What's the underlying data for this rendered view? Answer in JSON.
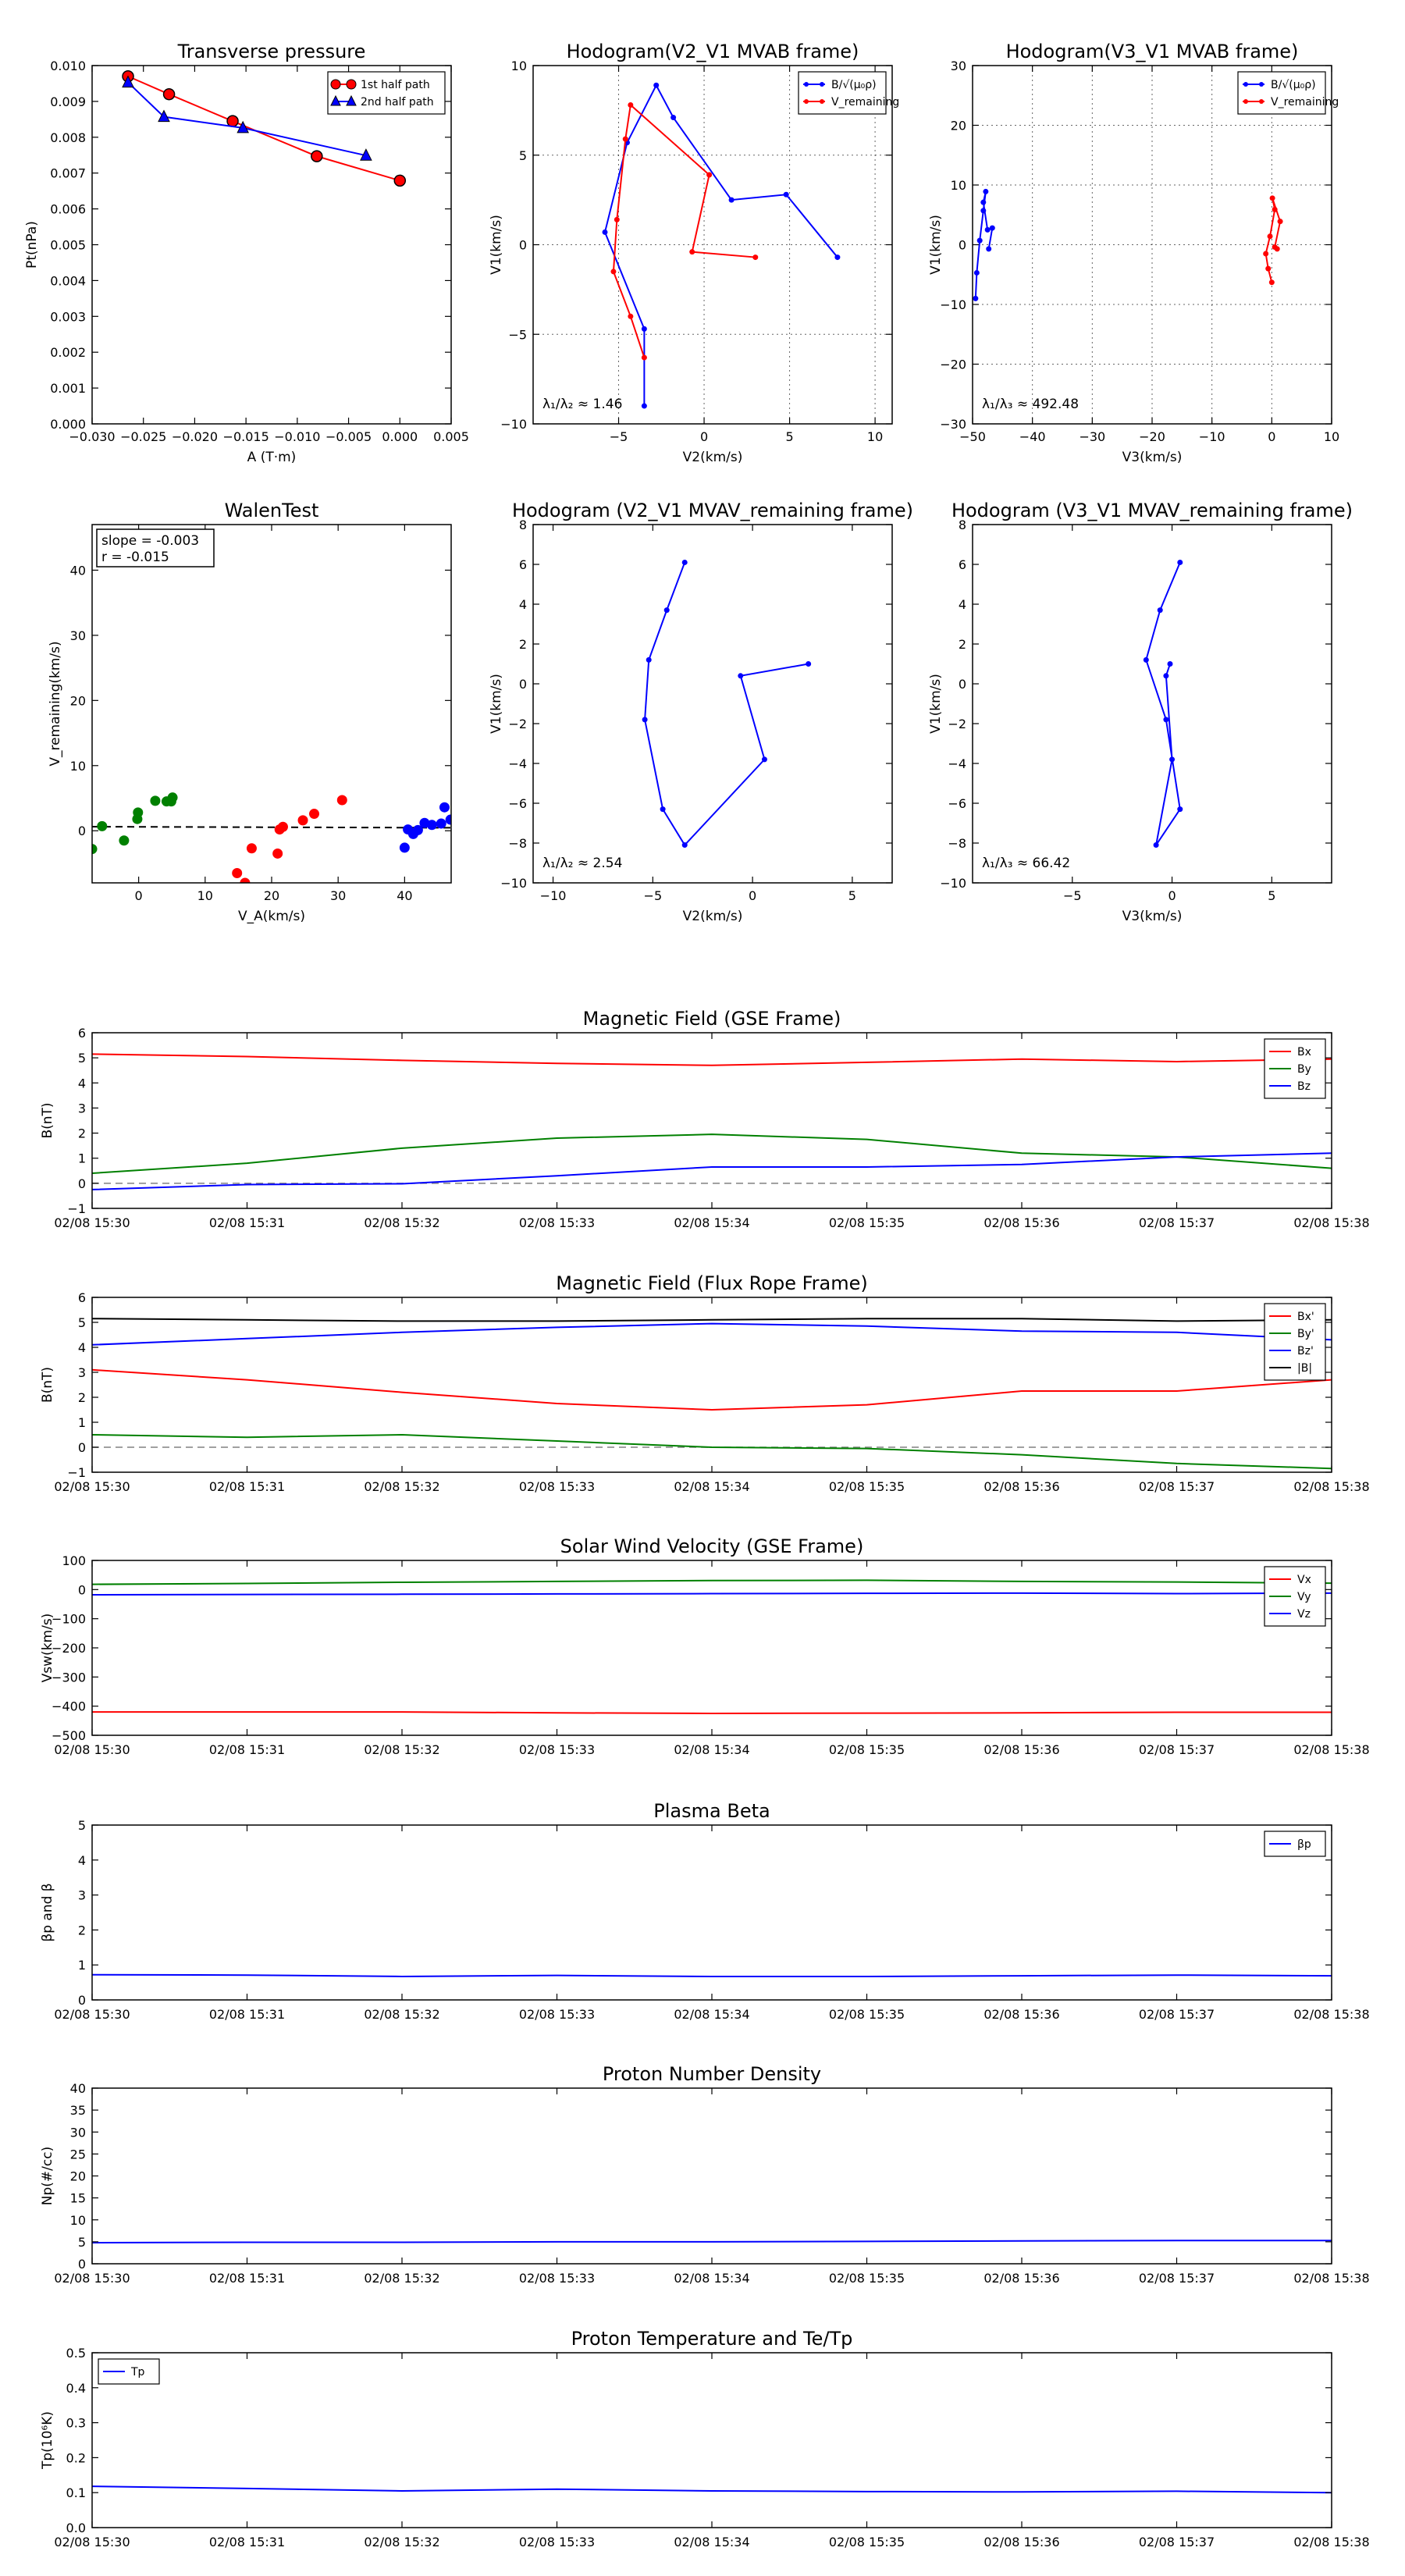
{
  "colors": {
    "red": "#ff0000",
    "blue": "#0000ff",
    "green": "#008000",
    "black": "#000000",
    "grid": "#808080"
  },
  "chart_data": [
    {
      "id": "pt",
      "type": "line",
      "title": "Transverse pressure",
      "xlabel": "A (T·m)",
      "ylabel": "Pt(nPa)",
      "xlim": [
        -0.03,
        0.005
      ],
      "ylim": [
        0,
        0.01
      ],
      "xticks": [
        -0.03,
        -0.025,
        -0.02,
        -0.015,
        -0.01,
        -0.005,
        0,
        0.005
      ],
      "xticklabels": [
        "−0.030",
        "−0.025",
        "−0.020",
        "−0.015",
        "−0.010",
        "−0.005",
        "0.000",
        "0.005"
      ],
      "yticks": [
        0,
        0.001,
        0.002,
        0.003,
        0.004,
        0.005,
        0.006,
        0.007,
        0.008,
        0.009,
        0.01
      ],
      "yticklabels": [
        "0.000",
        "0.001",
        "0.002",
        "0.003",
        "0.004",
        "0.005",
        "0.006",
        "0.007",
        "0.008",
        "0.009",
        "0.010"
      ],
      "grid": false,
      "legend": "top-right",
      "series": [
        {
          "name": "1st half path",
          "color": "red",
          "marker": "circle",
          "x": [
            -0.0265,
            -0.0225,
            -0.0163,
            -0.0081,
            0.0
          ],
          "y": [
            0.0097,
            0.0092,
            0.00845,
            0.00747,
            0.00679
          ]
        },
        {
          "name": "2nd half path",
          "color": "blue",
          "marker": "triangle",
          "x": [
            -0.0265,
            -0.023,
            -0.0153,
            -0.0033
          ],
          "y": [
            0.00953,
            0.00857,
            0.00826,
            0.00749
          ]
        }
      ]
    },
    {
      "id": "hodo-v2-mvab",
      "type": "line",
      "title": "Hodogram(V2_V1 MVAB frame)",
      "xlabel": "V2(km/s)",
      "ylabel": "V1(km/s)",
      "xlim": [
        -10,
        11
      ],
      "ylim": [
        -10,
        10
      ],
      "xticks": [
        -5,
        0,
        5,
        10
      ],
      "xticklabels": [
        "−5",
        "0",
        "5",
        "10"
      ],
      "yticks": [
        -10,
        -5,
        0,
        5,
        10
      ],
      "yticklabels": [
        "−10",
        "−5",
        "0",
        "5",
        "10"
      ],
      "grid": true,
      "legend": "top-right",
      "annotation": "λ₁/λ₂ ≈ 1.46",
      "series": [
        {
          "name": "B/√(μ₀ρ)",
          "color": "blue",
          "marker": "dot",
          "x": [
            -3.5,
            -3.5,
            -5.8,
            -4.5,
            -2.8,
            -1.8,
            1.6,
            4.8,
            7.8
          ],
          "y": [
            -9.0,
            -4.7,
            0.7,
            5.7,
            8.9,
            7.1,
            2.5,
            2.8,
            -0.7
          ]
        },
        {
          "name": "V_remaining",
          "color": "red",
          "marker": "dot",
          "x": [
            -3.5,
            -4.3,
            -5.3,
            -5.1,
            -4.6,
            -4.3,
            0.3,
            -0.7,
            3.0
          ],
          "y": [
            -6.3,
            -4.0,
            -1.5,
            1.4,
            5.9,
            7.8,
            3.9,
            -0.4,
            -0.7
          ]
        }
      ]
    },
    {
      "id": "hodo-v3-mvab",
      "type": "line",
      "title": "Hodogram(V3_V1 MVAB frame)",
      "xlabel": "V3(km/s)",
      "ylabel": "V1(km/s)",
      "xlim": [
        -50,
        10
      ],
      "ylim": [
        -30,
        30
      ],
      "xticks": [
        -50,
        -40,
        -30,
        -20,
        -10,
        0,
        10
      ],
      "xticklabels": [
        "−50",
        "−40",
        "−30",
        "−20",
        "−10",
        "0",
        "10"
      ],
      "yticks": [
        -30,
        -20,
        -10,
        0,
        10,
        20,
        30
      ],
      "yticklabels": [
        "−30",
        "−20",
        "−10",
        "0",
        "10",
        "20",
        "30"
      ],
      "grid": true,
      "legend": "top-right",
      "annotation": "λ₁/λ₃ ≈ 492.48",
      "series": [
        {
          "name": "B/√(μ₀ρ)",
          "color": "blue",
          "marker": "dot",
          "x": [
            -49.5,
            -49.3,
            -48.8,
            -48.2,
            -47.8,
            -48.2,
            -47.5,
            -46.7,
            -47.3
          ],
          "y": [
            -9.0,
            -4.7,
            0.7,
            5.7,
            8.9,
            7.1,
            2.5,
            2.8,
            -0.7
          ]
        },
        {
          "name": "V_remaining",
          "color": "red",
          "marker": "dot",
          "x": [
            0.0,
            -0.6,
            -1.0,
            -0.3,
            0.5,
            0.1,
            1.4,
            0.5,
            0.9
          ],
          "y": [
            -6.3,
            -4.0,
            -1.5,
            1.4,
            5.9,
            7.8,
            3.9,
            -0.4,
            -0.7
          ]
        }
      ]
    },
    {
      "id": "walen",
      "type": "scatter",
      "title": "WalenTest",
      "xlabel": "V_A(km/s)",
      "ylabel": "V_remaining(km/s)",
      "xlim": [
        -7,
        47
      ],
      "ylim": [
        -8,
        47
      ],
      "xticks": [
        0,
        10,
        20,
        30,
        40
      ],
      "xticklabels": [
        "0",
        "10",
        "20",
        "30",
        "40"
      ],
      "yticks": [
        0,
        10,
        20,
        30,
        40
      ],
      "yticklabels": [
        "0",
        "10",
        "20",
        "30",
        "40"
      ],
      "grid": false,
      "stats": [
        "slope = -0.003",
        "r = -0.015"
      ],
      "fit_line": {
        "slope": -0.003,
        "intercept": 0.6
      },
      "series": [
        {
          "name": "green",
          "color": "green",
          "x": [
            -7.0,
            -5.5,
            -2.2,
            -0.2,
            -0.1,
            2.5,
            4.2,
            5.1,
            4.9
          ],
          "y": [
            -2.8,
            0.7,
            -1.5,
            1.8,
            2.8,
            4.6,
            4.5,
            5.1,
            4.5
          ]
        },
        {
          "name": "red",
          "color": "red",
          "x": [
            14.8,
            16.0,
            17.0,
            20.9,
            21.2,
            21.7,
            24.7,
            26.4,
            30.6
          ],
          "y": [
            -6.5,
            -8.0,
            -2.7,
            -3.5,
            0.2,
            0.6,
            1.6,
            2.6,
            4.7
          ]
        },
        {
          "name": "blue",
          "color": "blue",
          "x": [
            40.0,
            40.5,
            41.3,
            42.0,
            43.0,
            44.1,
            45.5,
            46.0,
            46.9
          ],
          "y": [
            -2.6,
            0.2,
            -0.5,
            0.1,
            1.2,
            0.9,
            1.1,
            3.6,
            1.7
          ]
        }
      ]
    },
    {
      "id": "hodo-v2-mvav",
      "type": "line",
      "title": "Hodogram (V2_V1 MVAV_remaining frame)",
      "xlabel": "V2(km/s)",
      "ylabel": "V1(km/s)",
      "xlim": [
        -11,
        7
      ],
      "ylim": [
        -10,
        8
      ],
      "xticks": [
        -10,
        -5,
        0,
        5
      ],
      "xticklabels": [
        "−10",
        "−5",
        "0",
        "5"
      ],
      "yticks": [
        -10,
        -8,
        -6,
        -4,
        -2,
        0,
        2,
        4,
        6,
        8
      ],
      "yticklabels": [
        "−10",
        "−8",
        "−6",
        "−4",
        "−2",
        "0",
        "2",
        "4",
        "6",
        "8"
      ],
      "grid": false,
      "annotation": "λ₁/λ₂ ≈ 2.54",
      "series": [
        {
          "name": "V",
          "color": "blue",
          "marker": "dot",
          "x": [
            -3.4,
            -4.3,
            -5.2,
            -5.4,
            -4.5,
            -3.4,
            0.6,
            -0.6,
            2.8
          ],
          "y": [
            6.1,
            3.7,
            1.2,
            -1.8,
            -6.3,
            -8.1,
            -3.8,
            0.4,
            1.0
          ]
        }
      ]
    },
    {
      "id": "hodo-v3-mvav",
      "type": "line",
      "title": "Hodogram (V3_V1 MVAV_remaining frame)",
      "xlabel": "V3(km/s)",
      "ylabel": "V1(km/s)",
      "xlim": [
        -10,
        8
      ],
      "ylim": [
        -10,
        8
      ],
      "xticks": [
        -5,
        0,
        5
      ],
      "xticklabels": [
        "−5",
        "0",
        "5"
      ],
      "yticks": [
        -10,
        -8,
        -6,
        -4,
        -2,
        0,
        2,
        4,
        6,
        8
      ],
      "yticklabels": [
        "−10",
        "−8",
        "−6",
        "−4",
        "−2",
        "0",
        "2",
        "4",
        "6",
        "8"
      ],
      "grid": false,
      "annotation": "λ₁/λ₃ ≈ 66.42",
      "series": [
        {
          "name": "V",
          "color": "blue",
          "marker": "dot",
          "x": [
            0.4,
            -0.6,
            -1.3,
            -0.3,
            0.4,
            -0.8,
            0.0,
            -0.3,
            -0.1
          ],
          "y": [
            6.1,
            3.7,
            1.2,
            -1.8,
            -6.3,
            -8.1,
            -3.8,
            0.4,
            1.0
          ]
        }
      ]
    },
    {
      "id": "b-gse",
      "type": "line",
      "title": "Magnetic Field (GSE Frame)",
      "xlabel": "",
      "ylabel": "B(nT)",
      "xlim": [
        0,
        8
      ],
      "ylim": [
        -1,
        6
      ],
      "yticks": [
        -1,
        0,
        1,
        2,
        3,
        4,
        5,
        6
      ],
      "yticklabels": [
        "−1",
        "0",
        "1",
        "2",
        "3",
        "4",
        "5",
        "6"
      ],
      "zero_line": true,
      "legend": "top-right",
      "series": [
        {
          "name": "Bx",
          "color": "red",
          "x": [
            0,
            1,
            2,
            3,
            4,
            5,
            6,
            7,
            8
          ],
          "y": [
            5.15,
            5.05,
            4.9,
            4.78,
            4.7,
            4.82,
            4.95,
            4.85,
            4.95
          ]
        },
        {
          "name": "By",
          "color": "green",
          "x": [
            0,
            1,
            2,
            3,
            4,
            5,
            6,
            7,
            8
          ],
          "y": [
            0.4,
            0.8,
            1.4,
            1.8,
            1.95,
            1.75,
            1.2,
            1.05,
            0.6
          ]
        },
        {
          "name": "Bz",
          "color": "blue",
          "x": [
            0,
            1,
            2,
            3,
            4,
            5,
            6,
            7,
            8
          ],
          "y": [
            -0.25,
            -0.05,
            -0.02,
            0.3,
            0.65,
            0.65,
            0.75,
            1.05,
            1.2
          ]
        }
      ]
    },
    {
      "id": "b-fr",
      "type": "line",
      "title": "Magnetic Field (Flux Rope Frame)",
      "xlabel": "",
      "ylabel": "B(nT)",
      "xlim": [
        0,
        8
      ],
      "ylim": [
        -1,
        6
      ],
      "yticks": [
        -1,
        0,
        1,
        2,
        3,
        4,
        5,
        6
      ],
      "yticklabels": [
        "−1",
        "0",
        "1",
        "2",
        "3",
        "4",
        "5",
        "6"
      ],
      "zero_line": true,
      "legend": "top-right",
      "series": [
        {
          "name": "Bx'",
          "color": "red",
          "x": [
            0,
            1,
            2,
            3,
            4,
            5,
            6,
            7,
            8
          ],
          "y": [
            3.1,
            2.7,
            2.2,
            1.75,
            1.5,
            1.7,
            2.25,
            2.25,
            2.7
          ]
        },
        {
          "name": "By'",
          "color": "green",
          "x": [
            0,
            1,
            2,
            3,
            4,
            5,
            6,
            7,
            8
          ],
          "y": [
            0.5,
            0.4,
            0.5,
            0.25,
            0.0,
            -0.05,
            -0.3,
            -0.65,
            -0.85
          ]
        },
        {
          "name": "Bz'",
          "color": "blue",
          "x": [
            0,
            1,
            2,
            3,
            4,
            5,
            6,
            7,
            8
          ],
          "y": [
            4.1,
            4.35,
            4.6,
            4.8,
            4.95,
            4.85,
            4.65,
            4.6,
            4.3
          ]
        },
        {
          "name": "|B|",
          "color": "black",
          "x": [
            0,
            1,
            2,
            3,
            4,
            5,
            6,
            7,
            8
          ],
          "y": [
            5.15,
            5.1,
            5.05,
            5.05,
            5.1,
            5.15,
            5.15,
            5.05,
            5.1
          ]
        }
      ]
    },
    {
      "id": "vsw",
      "type": "line",
      "title": "Solar Wind Velocity (GSE Frame)",
      "xlabel": "",
      "ylabel": "Vsw(km/s)",
      "xlim": [
        0,
        8
      ],
      "ylim": [
        -500,
        100
      ],
      "yticks": [
        -500,
        -400,
        -300,
        -200,
        -100,
        0,
        100
      ],
      "yticklabels": [
        "−500",
        "−400",
        "−300",
        "−200",
        "−100",
        "0",
        "100"
      ],
      "legend": "top-right",
      "series": [
        {
          "name": "Vx",
          "color": "red",
          "x": [
            0,
            1,
            2,
            3,
            4,
            5,
            6,
            7,
            8
          ],
          "y": [
            -420,
            -420,
            -420,
            -423,
            -425,
            -424,
            -423,
            -421,
            -421
          ]
        },
        {
          "name": "Vy",
          "color": "green",
          "x": [
            0,
            1,
            2,
            3,
            4,
            5,
            6,
            7,
            8
          ],
          "y": [
            18,
            21,
            25,
            28,
            31,
            32,
            28,
            26,
            22
          ]
        },
        {
          "name": "Vz",
          "color": "blue",
          "x": [
            0,
            1,
            2,
            3,
            4,
            5,
            6,
            7,
            8
          ],
          "y": [
            -18,
            -17,
            -16,
            -15,
            -14,
            -13,
            -12,
            -14,
            -12
          ]
        }
      ]
    },
    {
      "id": "beta",
      "type": "line",
      "title": "Plasma Beta",
      "xlabel": "",
      "ylabel": "βp and β",
      "xlim": [
        0,
        8
      ],
      "ylim": [
        0,
        5
      ],
      "yticks": [
        0,
        1,
        2,
        3,
        4,
        5
      ],
      "yticklabels": [
        "0",
        "1",
        "2",
        "3",
        "4",
        "5"
      ],
      "legend": "top-right",
      "series": [
        {
          "name": "βp",
          "color": "blue",
          "x": [
            0,
            1,
            2,
            3,
            4,
            5,
            6,
            7,
            8
          ],
          "y": [
            0.72,
            0.71,
            0.67,
            0.7,
            0.67,
            0.67,
            0.69,
            0.71,
            0.69
          ]
        }
      ]
    },
    {
      "id": "np",
      "type": "line",
      "title": "Proton Number Density",
      "xlabel": "",
      "ylabel": "Np(#/cc)",
      "xlim": [
        0,
        8
      ],
      "ylim": [
        0,
        40
      ],
      "yticks": [
        0,
        5,
        10,
        15,
        20,
        25,
        30,
        35,
        40
      ],
      "yticklabels": [
        "0",
        "5",
        "10",
        "15",
        "20",
        "25",
        "30",
        "35",
        "40"
      ],
      "series": [
        {
          "name": "Np",
          "color": "blue",
          "x": [
            0,
            1,
            2,
            3,
            4,
            5,
            6,
            7,
            8
          ],
          "y": [
            4.8,
            4.9,
            4.9,
            5.0,
            5.0,
            5.1,
            5.2,
            5.3,
            5.3
          ]
        }
      ]
    },
    {
      "id": "tp",
      "type": "line",
      "title": "Proton Temperature and Te/Tp",
      "xlabel": "",
      "ylabel": "Tp(10⁶K)",
      "xlim": [
        0,
        8
      ],
      "ylim": [
        0,
        0.5
      ],
      "yticks": [
        0,
        0.1,
        0.2,
        0.3,
        0.4,
        0.5
      ],
      "yticklabels": [
        "0.0",
        "0.1",
        "0.2",
        "0.3",
        "0.4",
        "0.5"
      ],
      "legend": "top-left",
      "series": [
        {
          "name": "Tp",
          "color": "blue",
          "x": [
            0,
            1,
            2,
            3,
            4,
            5,
            6,
            7,
            8
          ],
          "y": [
            0.118,
            0.112,
            0.105,
            0.11,
            0.105,
            0.103,
            0.102,
            0.104,
            0.1
          ]
        }
      ]
    }
  ],
  "time_axis": {
    "labels": [
      "02/08 15:30",
      "02/08 15:31",
      "02/08 15:32",
      "02/08 15:33",
      "02/08 15:34",
      "02/08 15:35",
      "02/08 15:36",
      "02/08 15:37",
      "02/08 15:38"
    ]
  }
}
